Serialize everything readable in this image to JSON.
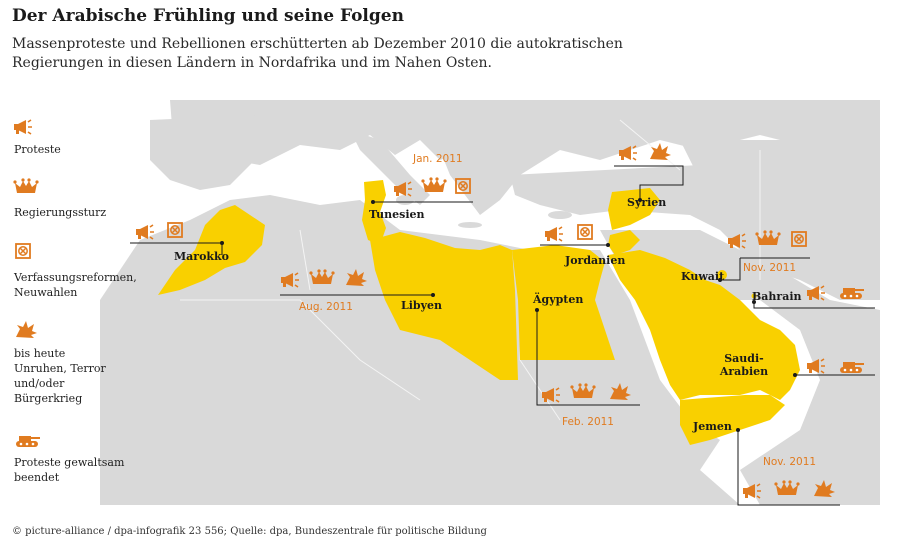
{
  "title": "Der Arabische Frühling und seine Folgen",
  "subtitle": "Massenproteste und Rebellionen erschütterten ab Dezember 2010 die autokratischen Regierungen in diesen Ländern in Nordafrika und im Nahen Osten.",
  "colors": {
    "country_highlight": "#f9d000",
    "land": "#d9d9d9",
    "sea": "#ffffff",
    "icon": "#e07b20"
  },
  "legend": [
    {
      "icon": "megaphone-icon",
      "label": "Proteste"
    },
    {
      "icon": "crown-icon",
      "label": "Regierungssturz"
    },
    {
      "icon": "ballot-box-icon",
      "label": "Verfassungsreformen, Neuwahlen"
    },
    {
      "icon": "explosion-icon",
      "label": "bis heute Unruhen, Terror und/oder Bürgerkrieg"
    },
    {
      "icon": "tank-icon",
      "label": "Proteste gewaltsam beendet"
    }
  ],
  "countries": [
    {
      "name": "Marokko",
      "events": [
        "megaphone-icon",
        "ballot-box-icon"
      ],
      "date": ""
    },
    {
      "name": "Tunesien",
      "events": [
        "megaphone-icon",
        "crown-icon",
        "ballot-box-icon"
      ],
      "date": "Jan. 2011"
    },
    {
      "name": "Libyen",
      "events": [
        "megaphone-icon",
        "crown-icon",
        "explosion-icon"
      ],
      "date": "Aug. 2011"
    },
    {
      "name": "Ägypten",
      "events": [
        "megaphone-icon",
        "crown-icon",
        "explosion-icon"
      ],
      "date": "Feb. 2011"
    },
    {
      "name": "Jordanien",
      "events": [
        "megaphone-icon",
        "ballot-box-icon"
      ],
      "date": ""
    },
    {
      "name": "Syrien",
      "events": [
        "megaphone-icon",
        "explosion-icon"
      ],
      "date": ""
    },
    {
      "name": "Kuwait",
      "events": [
        "megaphone-icon",
        "crown-icon",
        "ballot-box-icon"
      ],
      "date": "Nov. 2011"
    },
    {
      "name": "Bahrain",
      "events": [
        "megaphone-icon",
        "tank-icon"
      ],
      "date": ""
    },
    {
      "name": "Saudi-Arabien",
      "events": [
        "megaphone-icon",
        "tank-icon"
      ],
      "date": ""
    },
    {
      "name": "Jemen",
      "events": [
        "megaphone-icon",
        "crown-icon",
        "explosion-icon"
      ],
      "date": "Nov. 2011"
    }
  ],
  "credit": "© picture-alliance / dpa-infografik 23 556; Quelle: dpa, Bundeszentrale für politische Bildung"
}
